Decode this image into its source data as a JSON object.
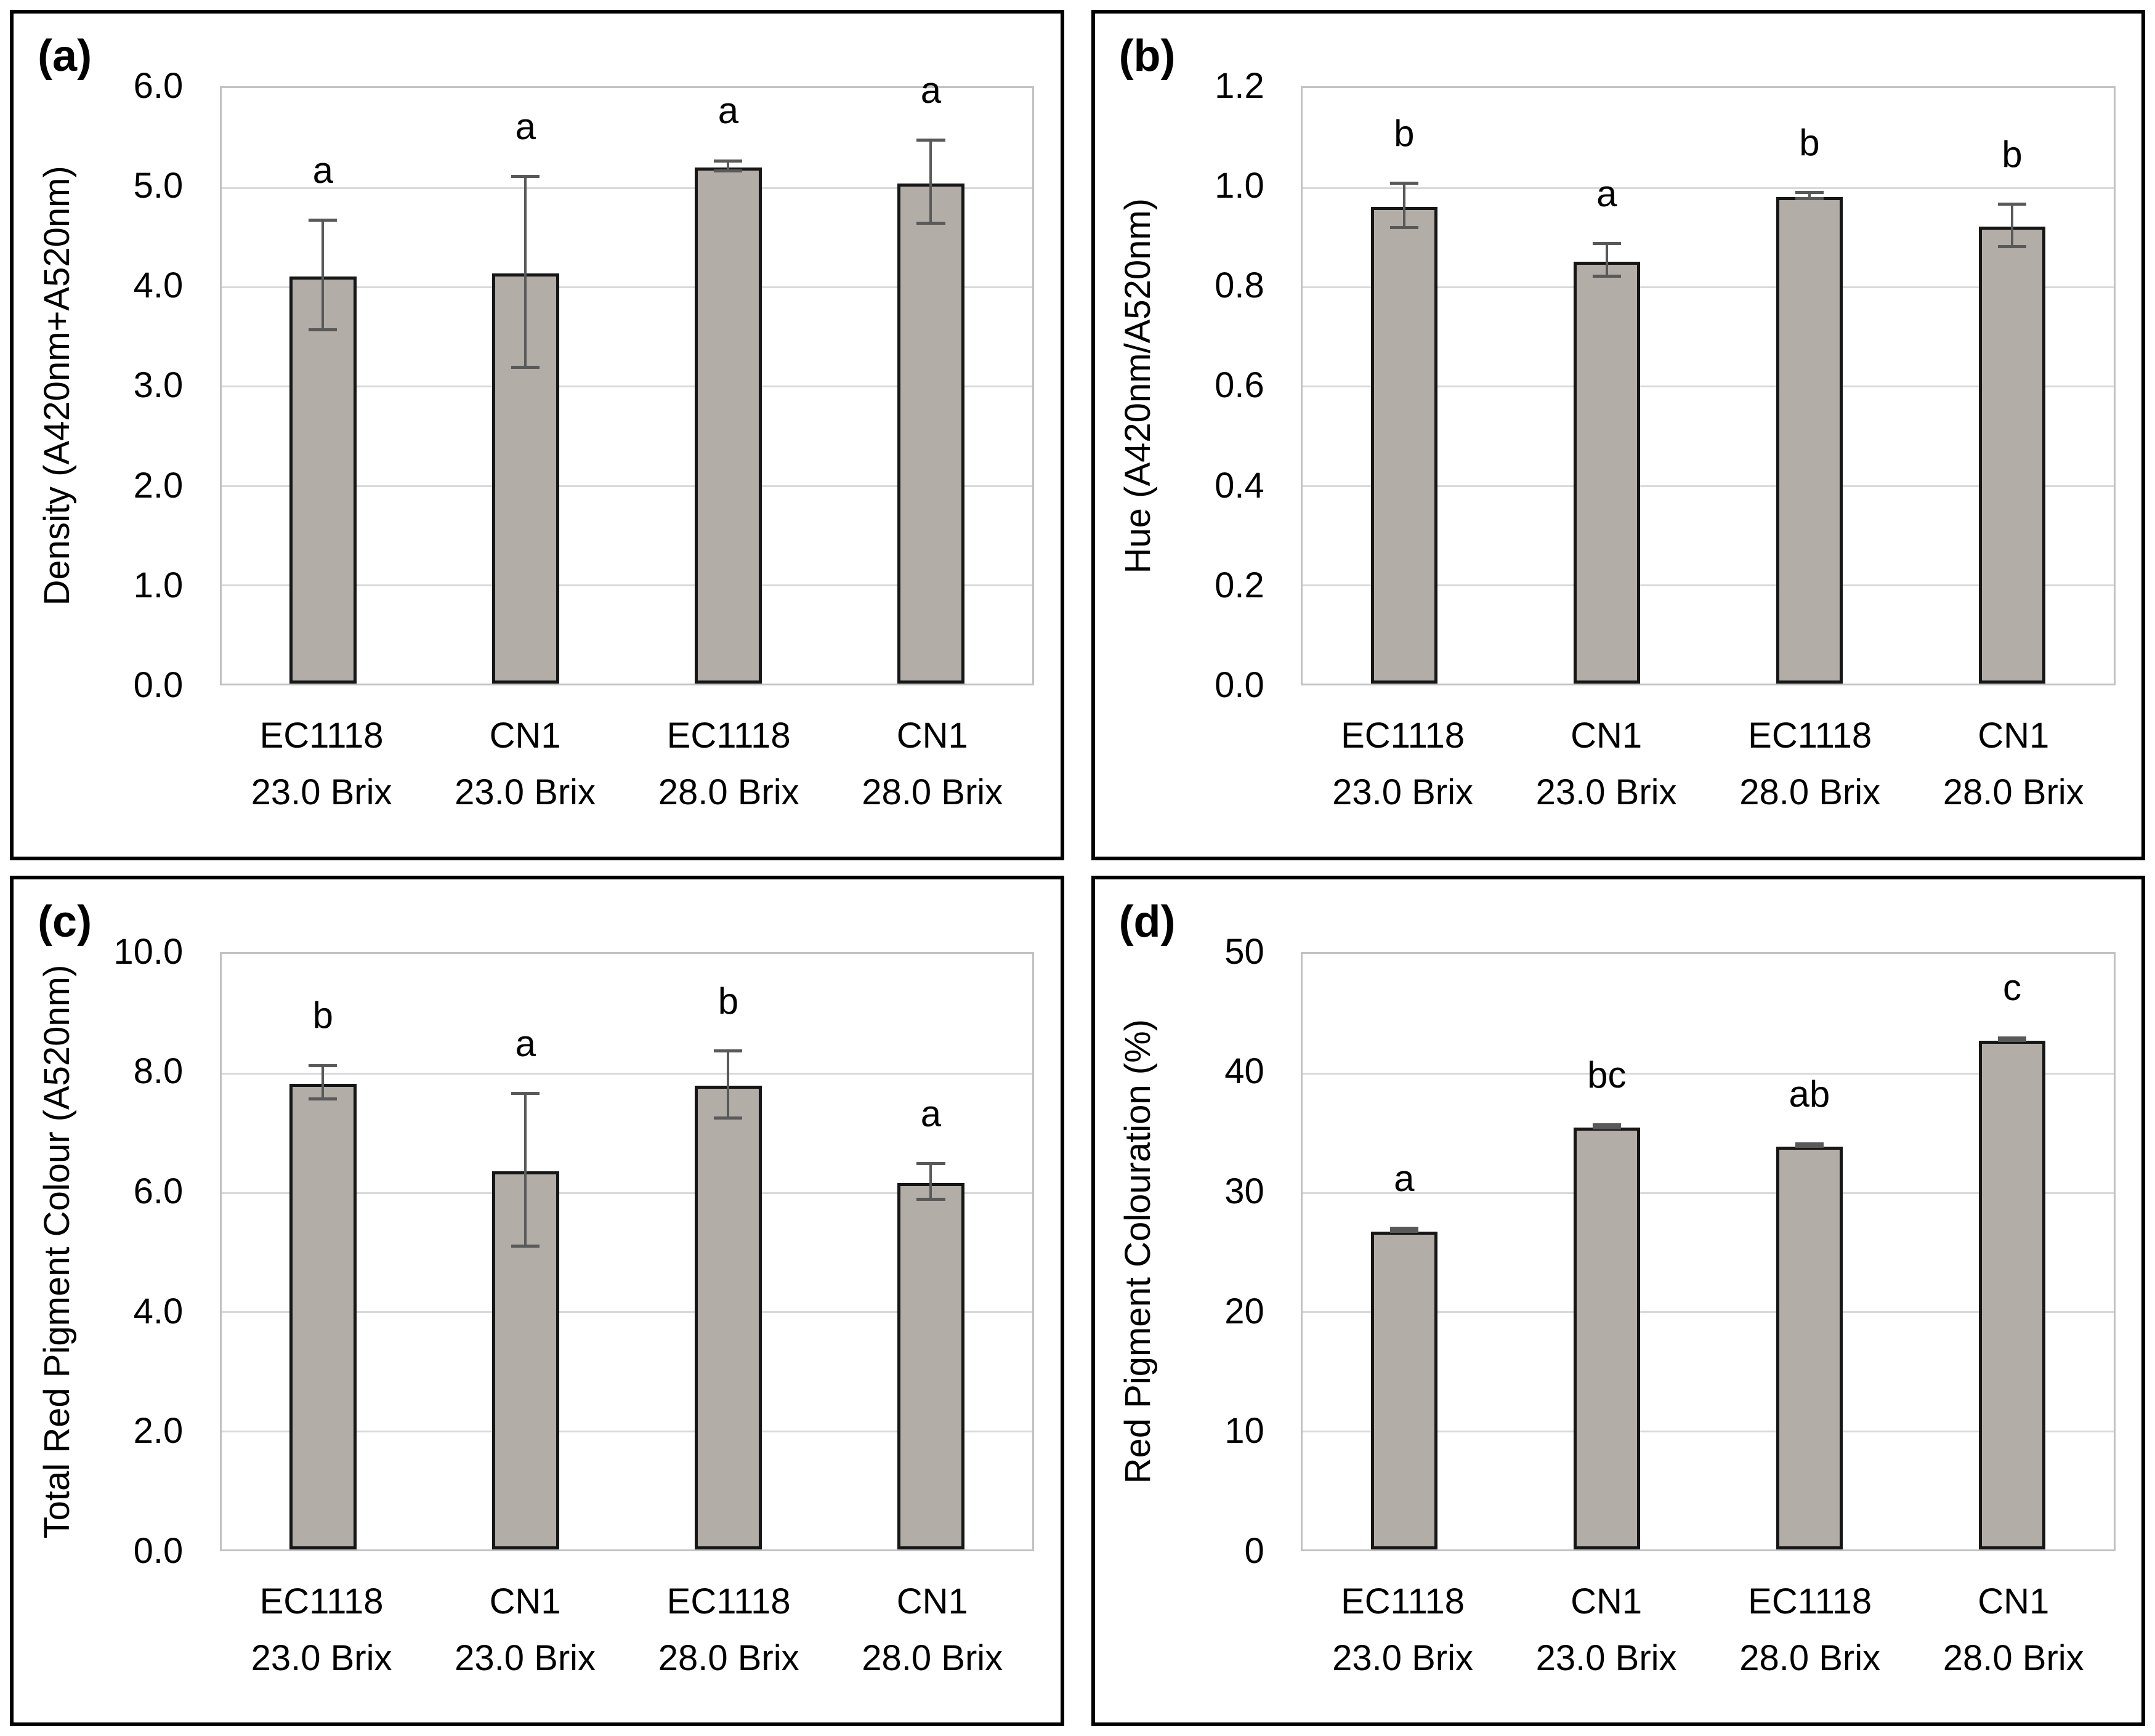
{
  "style": {
    "bar_fill": "#b3ada8",
    "bar_border": "#161616",
    "error_bar_color": "#595959",
    "gridline_color": "#d9d9d9",
    "plot_border_color": "#c2c2c2",
    "panel_border_color": "#000000",
    "text_color": "#000000",
    "background": "#ffffff"
  },
  "chart_data": [
    {
      "type": "bar",
      "panel_label": "(a)",
      "ylabel": "Density (A420nm+A520nm)",
      "xlabel": "",
      "ylim": [
        0,
        6
      ],
      "ytick_step": 1.0,
      "ytick_decimals": 1,
      "grid": true,
      "legend": false,
      "categories": [
        {
          "line1": "EC1118",
          "line2": "23.0 Brix"
        },
        {
          "line1": "CN1",
          "line2": "23.0 Brix"
        },
        {
          "line1": "EC1118",
          "line2": "28.0 Brix"
        },
        {
          "line1": "CN1",
          "line2": "28.0 Brix"
        }
      ],
      "values": [
        4.1,
        4.13,
        5.2,
        5.04
      ],
      "errors": [
        0.55,
        0.96,
        0.05,
        0.42
      ],
      "sig_letters": [
        "a",
        "a",
        "a",
        "a"
      ]
    },
    {
      "type": "bar",
      "panel_label": "(b)",
      "ylabel": "Hue (A420nm/A520nm)",
      "xlabel": "",
      "ylim": [
        0,
        1.2
      ],
      "ytick_step": 0.2,
      "ytick_decimals": 1,
      "grid": true,
      "legend": false,
      "categories": [
        {
          "line1": "EC1118",
          "line2": "23.0 Brix"
        },
        {
          "line1": "CN1",
          "line2": "23.0 Brix"
        },
        {
          "line1": "EC1118",
          "line2": "28.0 Brix"
        },
        {
          "line1": "CN1",
          "line2": "28.0 Brix"
        }
      ],
      "values": [
        0.96,
        0.85,
        0.98,
        0.92
      ],
      "errors": [
        0.045,
        0.033,
        0.006,
        0.043
      ],
      "sig_letters": [
        "b",
        "a",
        "b",
        "b"
      ]
    },
    {
      "type": "bar",
      "panel_label": "(c)",
      "ylabel": "Total Red Pigment Colour (A520nm)",
      "xlabel": "",
      "ylim": [
        0,
        10
      ],
      "ytick_step": 2.0,
      "ytick_decimals": 1,
      "grid": true,
      "legend": false,
      "categories": [
        {
          "line1": "EC1118",
          "line2": "23.0 Brix"
        },
        {
          "line1": "CN1",
          "line2": "23.0 Brix"
        },
        {
          "line1": "EC1118",
          "line2": "28.0 Brix"
        },
        {
          "line1": "CN1",
          "line2": "28.0 Brix"
        }
      ],
      "values": [
        7.82,
        6.35,
        7.78,
        6.15
      ],
      "errors": [
        0.28,
        1.28,
        0.56,
        0.3
      ],
      "sig_letters": [
        "b",
        "a",
        "b",
        "a"
      ]
    },
    {
      "type": "bar",
      "panel_label": "(d)",
      "ylabel": "Red Pigment Colouration (%)",
      "xlabel": "",
      "ylim": [
        0,
        50
      ],
      "ytick_step": 10,
      "ytick_decimals": 0,
      "grid": true,
      "legend": false,
      "categories": [
        {
          "line1": "EC1118",
          "line2": "23.0 Brix"
        },
        {
          "line1": "CN1",
          "line2": "23.0 Brix"
        },
        {
          "line1": "EC1118",
          "line2": "28.0 Brix"
        },
        {
          "line1": "CN1",
          "line2": "28.0 Brix"
        }
      ],
      "values": [
        26.7,
        35.4,
        33.8,
        42.7
      ],
      "errors": [
        0.12,
        0.12,
        0.12,
        0.12
      ],
      "sig_letters": [
        "a",
        "bc",
        "ab",
        "c"
      ]
    }
  ]
}
